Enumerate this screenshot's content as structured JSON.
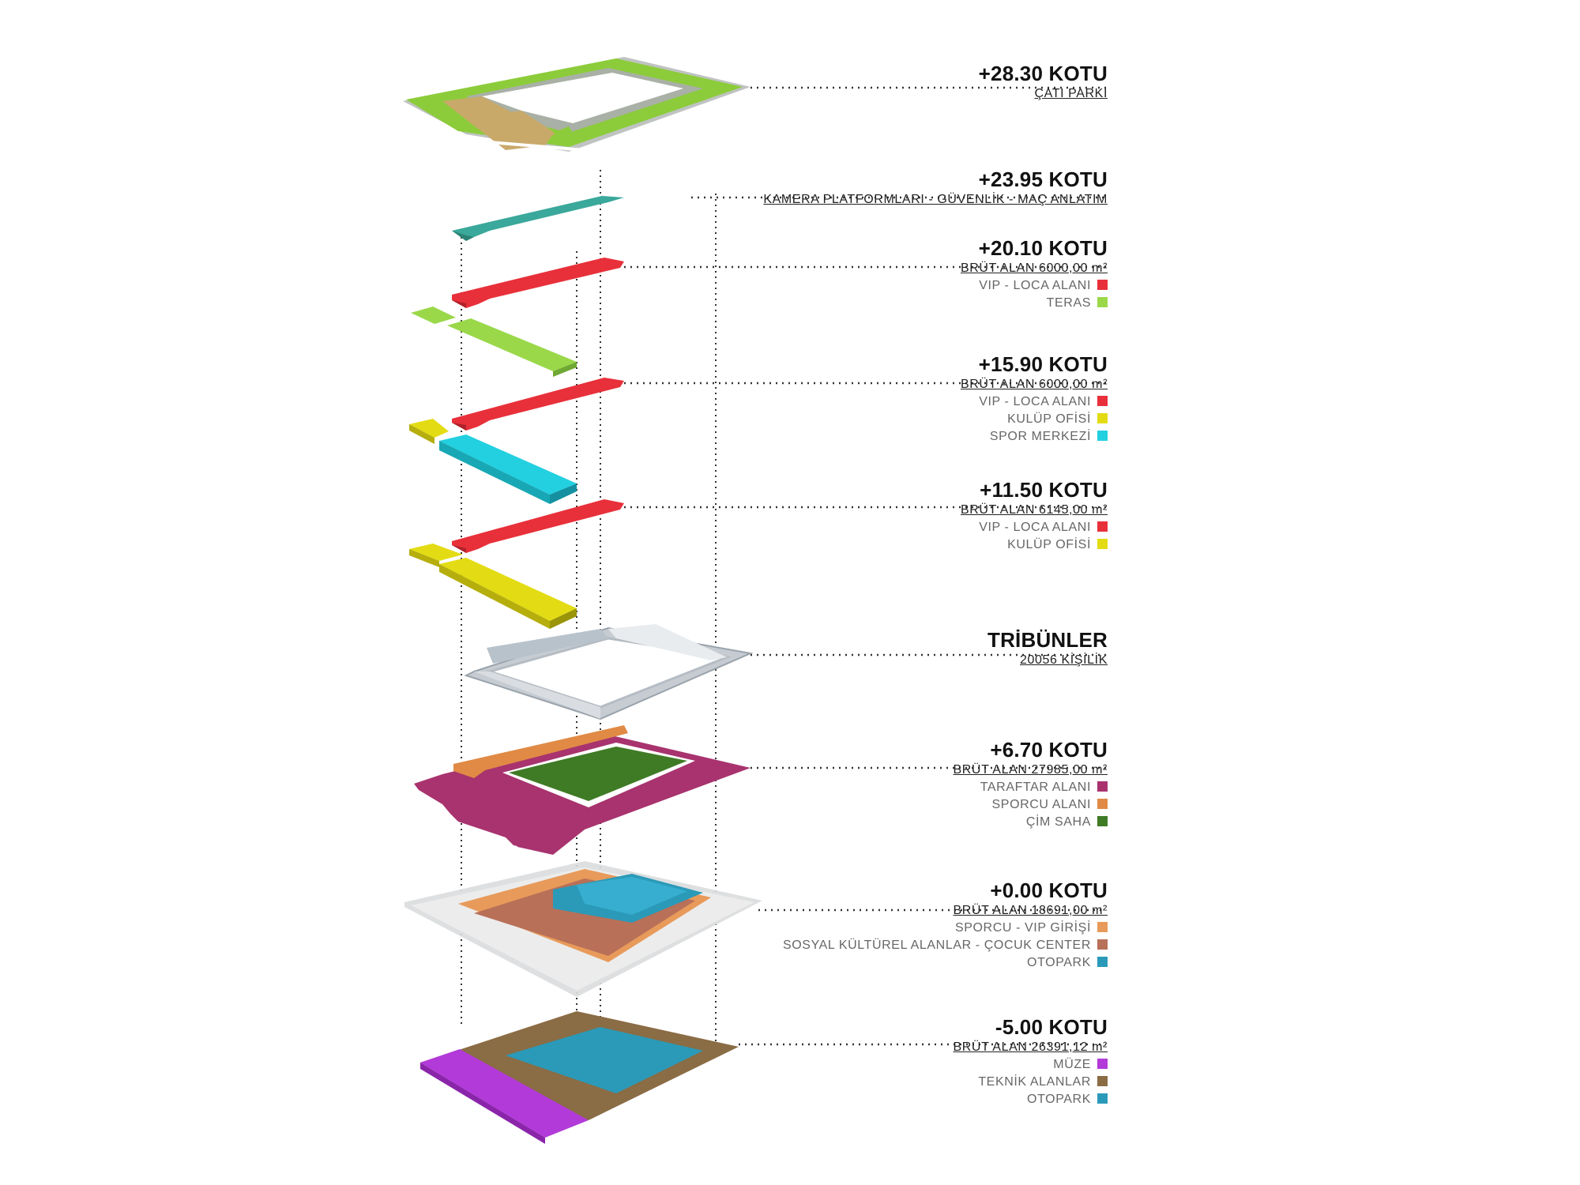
{
  "levels": [
    {
      "id": "roof",
      "title": "+28.30 KOTU",
      "subtitle": "ÇATI PARKI",
      "legend": []
    },
    {
      "id": "camera",
      "title": "+23.95 KOTU",
      "subtitle": "KAMERA PLATFORMLARI - GÜVENLİK - MAÇ ANLATIM",
      "legend": []
    },
    {
      "id": "l2010",
      "title": "+20.10 KOTU",
      "subtitle": "BRÜT ALAN 6000,00 m²",
      "legend": [
        {
          "label": "VIP - LOCA ALANI",
          "color": "#e8303a"
        },
        {
          "label": "TERAS",
          "color": "#9ad84a"
        }
      ]
    },
    {
      "id": "l1590",
      "title": "+15.90 KOTU",
      "subtitle": "BRÜT ALAN 6000,00 m²",
      "legend": [
        {
          "label": "VIP - LOCA ALANI",
          "color": "#e8303a"
        },
        {
          "label": "KULÜP OFİSİ",
          "color": "#e3dc14"
        },
        {
          "label": "SPOR MERKEZİ",
          "color": "#22d0e0"
        }
      ]
    },
    {
      "id": "l1150",
      "title": "+11.50 KOTU",
      "subtitle": "BRÜT ALAN 6145,00 m²",
      "legend": [
        {
          "label": "VIP - LOCA ALANI",
          "color": "#e8303a"
        },
        {
          "label": "KULÜP OFİSİ",
          "color": "#e3dc14"
        }
      ]
    },
    {
      "id": "tribune",
      "title": "TRİBÜNLER",
      "subtitle": "20056 KİŞİLİK",
      "legend": []
    },
    {
      "id": "l670",
      "title": "+6.70 KOTU",
      "subtitle": "BRÜT ALAN 27985,00 m²",
      "legend": [
        {
          "label": "TARAFTAR ALANI",
          "color": "#a8336e"
        },
        {
          "label": "SPORCU ALANI",
          "color": "#e08a45"
        },
        {
          "label": "ÇİM SAHA",
          "color": "#3f7a25"
        }
      ]
    },
    {
      "id": "l000",
      "title": "+0.00 KOTU",
      "subtitle": "BRÜT ALAN 18691,00 m²",
      "legend": [
        {
          "label": "SPORCU - VIP GİRİŞİ",
          "color": "#e89a5a"
        },
        {
          "label": "SOSYAL KÜLTÜREL ALANLAR - ÇOCUK CENTER",
          "color": "#b87058"
        },
        {
          "label": "OTOPARK",
          "color": "#2a9ab8"
        }
      ]
    },
    {
      "id": "lm500",
      "title": "-5.00 KOTU",
      "subtitle": "BRÜT ALAN 26391,12 m²",
      "legend": [
        {
          "label": "MÜZE",
          "color": "#b23ad8"
        },
        {
          "label": "TEKNİK ALANLAR",
          "color": "#8a6c45"
        },
        {
          "label": "OTOPARK",
          "color": "#2a9ab8"
        }
      ]
    }
  ],
  "colors": {
    "roof_green": "#8ccc3a",
    "roof_tan": "#c9a96a",
    "camera_teal": "#3aa89a",
    "vip_red": "#e8303a",
    "teras_green": "#9ad84a",
    "club_yellow": "#e3dc14",
    "sport_cyan": "#22d0e0",
    "tribune_gray": "#dfe3e5",
    "fan_purple": "#a8336e",
    "athlete_orange": "#e08a45",
    "grass_green": "#3f7a25",
    "parking_blue": "#2a9ab8",
    "museum_purple": "#b23ad8",
    "technical_brown": "#8a6c45"
  }
}
